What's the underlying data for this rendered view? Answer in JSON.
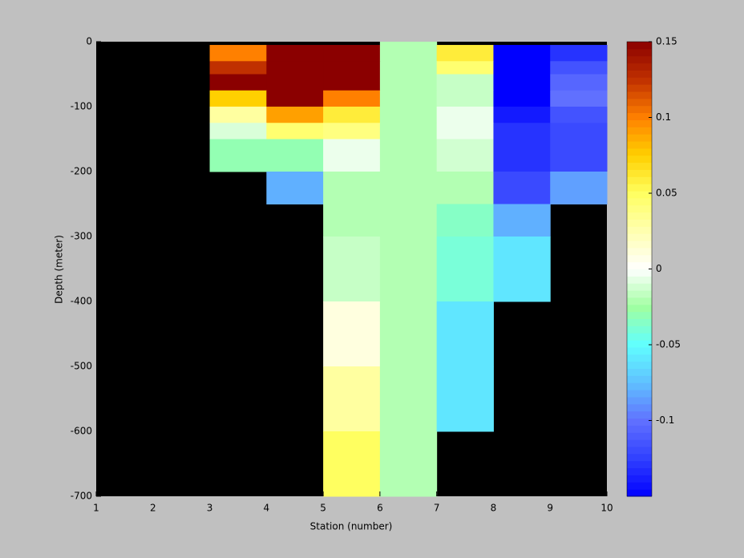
{
  "chart_data": {
    "type": "heatmap",
    "xlabel": "Station (number)",
    "ylabel": "Depth (meter)",
    "x": [
      1,
      2,
      3,
      4,
      5,
      6,
      7,
      8,
      9,
      10
    ],
    "y": [
      0,
      -5,
      -30,
      -50,
      -75,
      -100,
      -125,
      -150,
      -200,
      -250,
      -300,
      -400,
      -500,
      -600,
      -700
    ],
    "values": [
      [
        null,
        null,
        null,
        null,
        null,
        -0.02,
        null,
        null,
        null
      ],
      [
        null,
        null,
        0.1,
        0.15,
        0.15,
        -0.02,
        0.06,
        -0.15,
        -0.13
      ],
      [
        null,
        null,
        0.125,
        0.15,
        0.15,
        -0.02,
        0.045,
        -0.15,
        -0.115
      ],
      [
        null,
        null,
        0.15,
        0.15,
        0.15,
        -0.02,
        -0.015,
        -0.15,
        -0.105
      ],
      [
        null,
        null,
        0.075,
        0.15,
        0.1,
        -0.02,
        -0.015,
        -0.15,
        -0.1
      ],
      [
        null,
        null,
        0.03,
        0.09,
        0.06,
        -0.02,
        -0.005,
        -0.14,
        -0.115
      ],
      [
        null,
        null,
        -0.01,
        0.045,
        0.04,
        -0.02,
        -0.005,
        -0.13,
        -0.12
      ],
      [
        null,
        null,
        -0.03,
        -0.03,
        -0.005,
        -0.02,
        -0.012,
        -0.13,
        -0.12
      ],
      [
        null,
        null,
        null,
        -0.08,
        -0.02,
        -0.02,
        -0.02,
        -0.12,
        -0.085
      ],
      [
        null,
        null,
        null,
        null,
        -0.02,
        -0.02,
        -0.035,
        -0.08,
        null
      ],
      [
        null,
        null,
        null,
        null,
        -0.015,
        -0.02,
        -0.04,
        -0.06,
        null
      ],
      [
        null,
        null,
        null,
        null,
        0.01,
        -0.02,
        -0.06,
        null,
        null
      ],
      [
        null,
        null,
        null,
        null,
        0.03,
        -0.02,
        -0.06,
        null,
        null
      ],
      [
        null,
        null,
        null,
        null,
        0.05,
        -0.02,
        null,
        null,
        null
      ]
    ],
    "xlim": [
      1,
      10
    ],
    "ylim": [
      -700,
      0
    ],
    "xticks": [
      1,
      2,
      3,
      4,
      5,
      6,
      7,
      8,
      9,
      10
    ],
    "yticks": [
      0,
      -100,
      -200,
      -300,
      -400,
      -500,
      -600,
      -700
    ],
    "clim": [
      -0.15,
      0.15
    ],
    "cticks": [
      0.15,
      0.1,
      0.05,
      0,
      -0.05,
      -0.1
    ],
    "colormap": [
      "#0000ff",
      "#3040ff",
      "#6070ff",
      "#60c0ff",
      "#60ffff",
      "#a0ffa0",
      "#ffffff",
      "#ffffb0",
      "#ffff60",
      "#ffd000",
      "#ff8000",
      "#c03000",
      "#8b0000"
    ],
    "missing_color": "#000000"
  }
}
